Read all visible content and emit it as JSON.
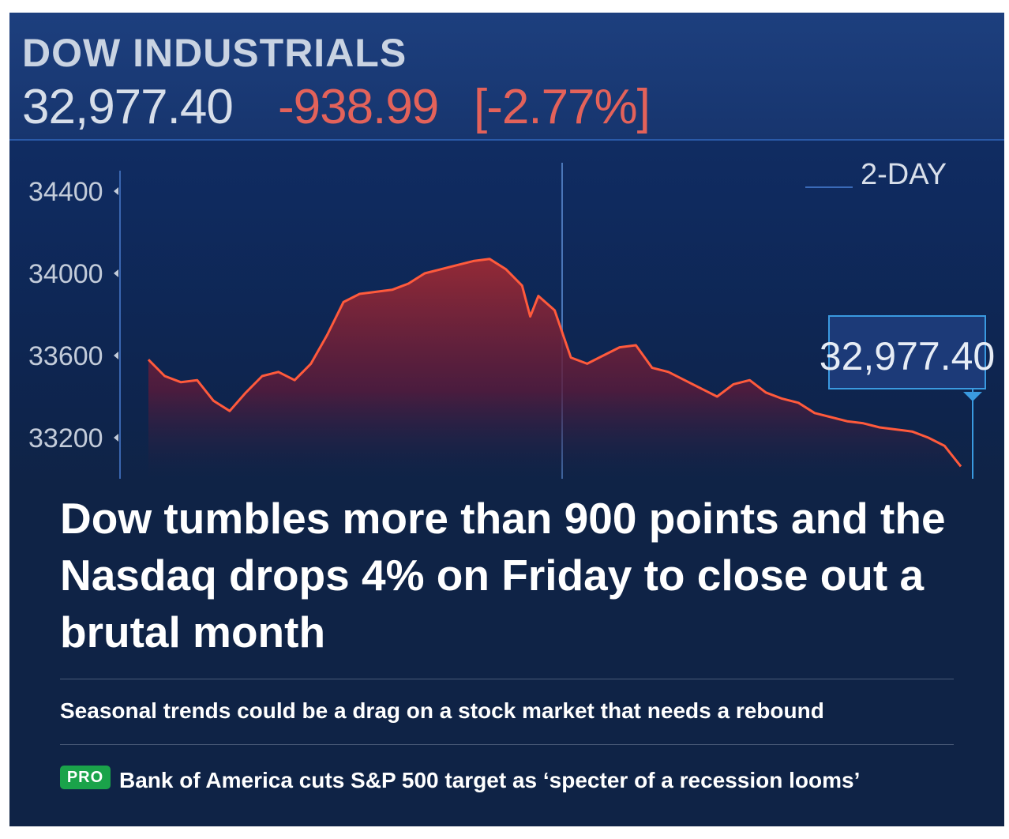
{
  "ticker": {
    "name": "DOW INDUSTRIALS",
    "price": "32,977.40",
    "change": "-938.99",
    "change_pct": "[-2.77%]",
    "range": "2-DAY"
  },
  "chart_data": {
    "type": "area",
    "y_ticks": [
      "34400",
      "34000",
      "33600",
      "33200"
    ],
    "ylim": [
      33000,
      34500
    ],
    "last_value_label": "32,977.40",
    "x": [
      0,
      2,
      4,
      6,
      8,
      10,
      12,
      14,
      16,
      18,
      20,
      22,
      24,
      26,
      28,
      30,
      32,
      34,
      36,
      38,
      40,
      42,
      44,
      46,
      47,
      48,
      50,
      52,
      54,
      56,
      58,
      60,
      62,
      64,
      66,
      68,
      70,
      72,
      74,
      76,
      78,
      80,
      82,
      84,
      86,
      88,
      90,
      92,
      94,
      96,
      98,
      100
    ],
    "values": [
      33580,
      33500,
      33470,
      33480,
      33380,
      33330,
      33420,
      33500,
      33520,
      33480,
      33560,
      33700,
      33860,
      33900,
      33910,
      33920,
      33950,
      34000,
      34020,
      34040,
      34060,
      34070,
      34020,
      33940,
      33790,
      33890,
      33820,
      33590,
      33560,
      33600,
      33640,
      33650,
      33540,
      33520,
      33480,
      33440,
      33400,
      33460,
      33480,
      33420,
      33390,
      33370,
      33320,
      33300,
      33280,
      33270,
      33250,
      33240,
      33230,
      33200,
      33160,
      33060
    ],
    "colors": {
      "line": "#ff5a3c",
      "fill": "#8a2030"
    },
    "grid": false
  },
  "headline": "Dow tumbles more than 900 points and the Nasdaq drops 4% on Friday to close out a brutal month",
  "links": [
    {
      "text": "Seasonal trends could be a drag on a stock market that needs a rebound"
    },
    {
      "badge": "PRO",
      "text": "Bank of America cuts S&P 500 target as ‘specter of a recession looms’"
    }
  ],
  "colors": {
    "background": "#0f2346",
    "negative": "#e3625a",
    "pro_badge": "#1aa34a"
  }
}
